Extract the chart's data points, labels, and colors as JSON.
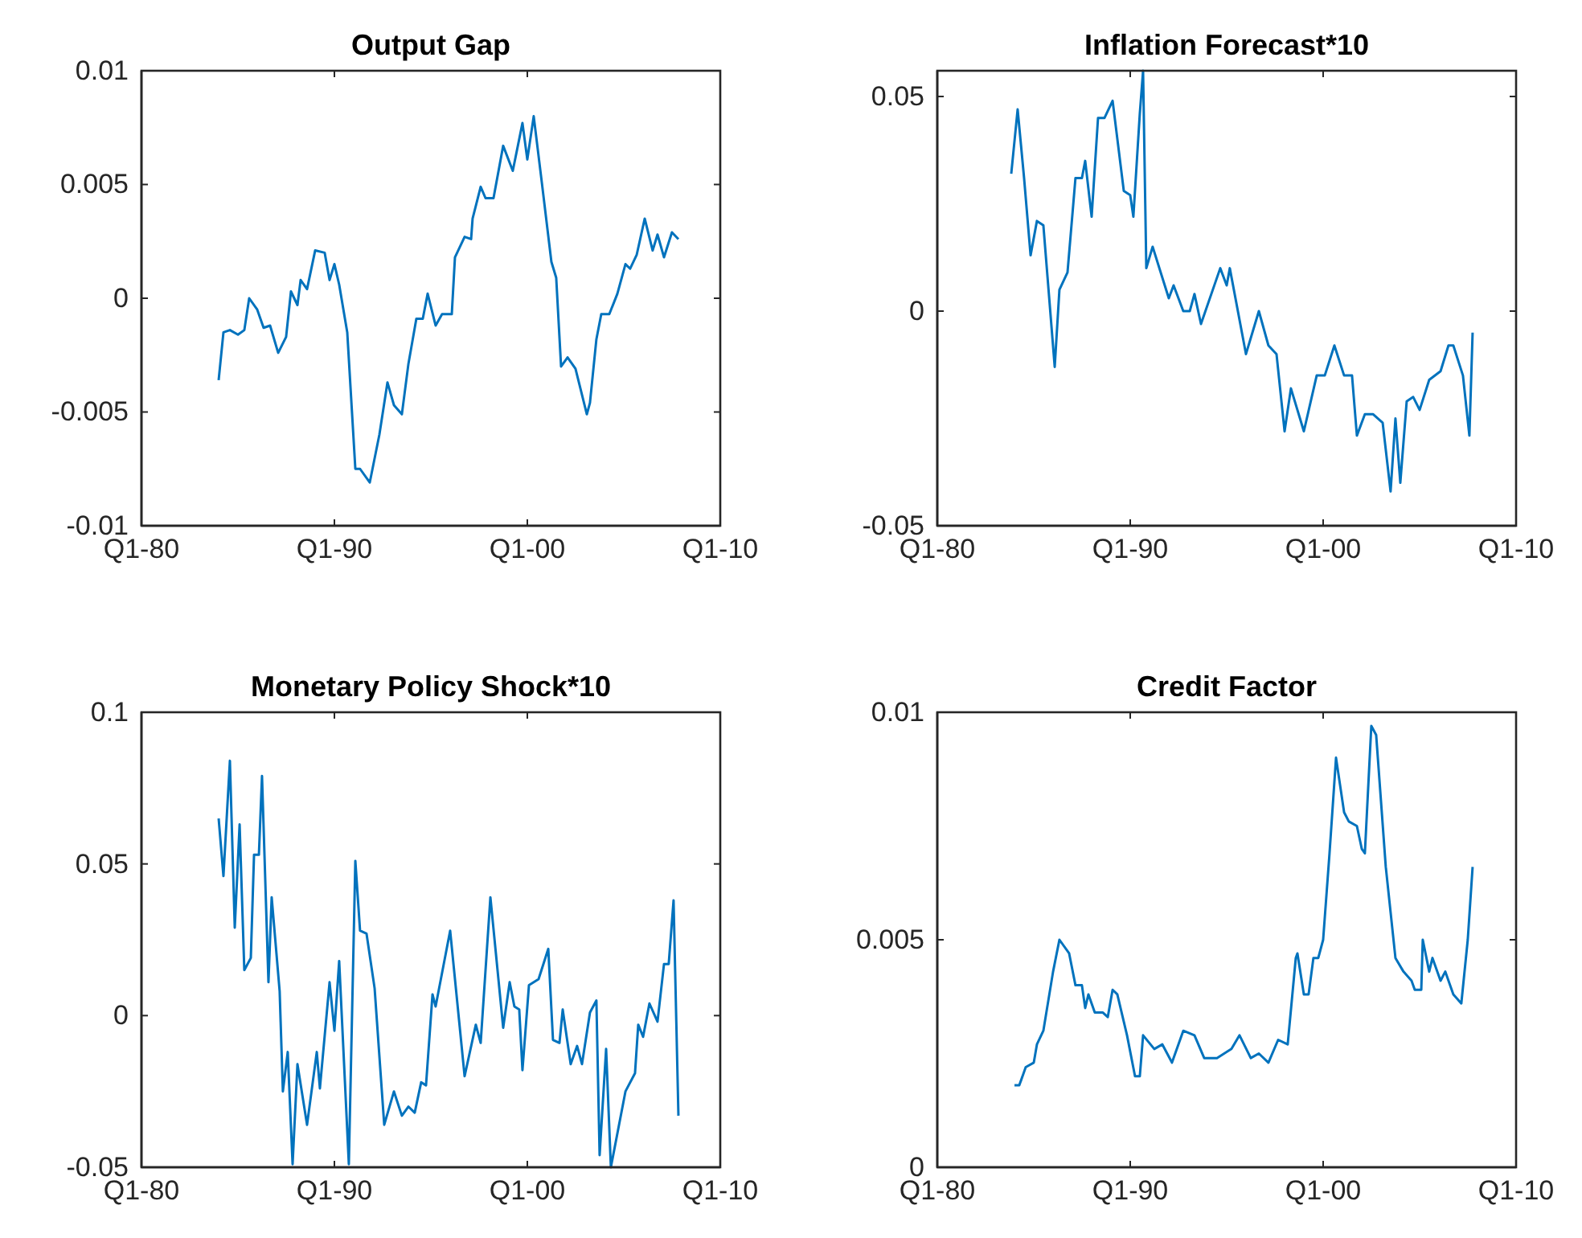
{
  "chart_data": [
    {
      "type": "line",
      "title": "Output Gap",
      "xlim": [
        "1980-01",
        "2010-01"
      ],
      "xticks": [
        {
          "value": "1980-01",
          "label": "Q1-80"
        },
        {
          "value": "1990-01",
          "label": "Q1-90"
        },
        {
          "value": "2000-01",
          "label": "Q1-00"
        },
        {
          "value": "2010-01",
          "label": "Q1-10"
        }
      ],
      "ylim": [
        -0.01,
        0.01
      ],
      "yticks": [
        -0.01,
        -0.005,
        0,
        0.005,
        0.01
      ],
      "x": [
        "1984-01",
        "1984-04",
        "1984-08",
        "1985-01",
        "1985-05",
        "1985-08",
        "1986-01",
        "1986-05",
        "1986-09",
        "1987-02",
        "1987-07",
        "1987-10",
        "1988-02",
        "1988-04",
        "1988-08",
        "1989-01",
        "1989-07",
        "1989-10",
        "1990-01",
        "1990-04",
        "1990-09",
        "1991-02",
        "1991-05",
        "1991-11",
        "1992-05",
        "1992-10",
        "1993-02",
        "1993-07",
        "1993-11",
        "1994-04",
        "1994-08",
        "1994-11",
        "1995-04",
        "1995-08",
        "1996-02",
        "1996-04",
        "1996-10",
        "1997-02",
        "1997-03",
        "1997-08",
        "1997-11",
        "1998-04",
        "1998-10",
        "1999-04",
        "1999-10",
        "2000-01",
        "2000-05",
        "2000-10",
        "2001-04",
        "2001-07",
        "2001-10",
        "2002-02",
        "2002-07",
        "2003-02",
        "2003-04",
        "2003-08",
        "2003-11",
        "2004-04",
        "2004-09",
        "2005-02",
        "2005-05",
        "2005-09",
        "2006-02",
        "2006-07",
        "2006-10",
        "2007-02",
        "2007-07",
        "2007-11"
      ],
      "series": [
        {
          "color": "#0072bd",
          "values": [
            -0.0036,
            -0.0015,
            -0.0014,
            -0.0016,
            -0.0014,
            0.0,
            -0.0005,
            -0.0013,
            -0.0012,
            -0.0024,
            -0.0017,
            0.0003,
            -0.0003,
            0.0008,
            0.0004,
            0.0021,
            0.002,
            0.0008,
            0.0015,
            0.0006,
            -0.0015,
            -0.0075,
            -0.0075,
            -0.0081,
            -0.006,
            -0.0037,
            -0.0047,
            -0.0051,
            -0.0029,
            -0.0009,
            -0.0009,
            0.0002,
            -0.0012,
            -0.0007,
            -0.0007,
            0.0018,
            0.0027,
            0.0026,
            0.0035,
            0.0049,
            0.0044,
            0.0044,
            0.0067,
            0.0056,
            0.0077,
            0.0061,
            0.008,
            0.0051,
            0.0016,
            0.0009,
            -0.003,
            -0.0026,
            -0.0031,
            -0.0051,
            -0.0046,
            -0.0018,
            -0.0007,
            -0.0007,
            0.0002,
            0.0015,
            0.0013,
            0.0019,
            0.0035,
            0.0021,
            0.0028,
            0.0018,
            0.0029,
            0.0026
          ]
        }
      ]
    },
    {
      "type": "line",
      "title": "Inflation Forecast*10",
      "xlim": [
        "1980-01",
        "2010-01"
      ],
      "xticks": [
        {
          "value": "1980-01",
          "label": "Q1-80"
        },
        {
          "value": "1990-01",
          "label": "Q1-90"
        },
        {
          "value": "2000-01",
          "label": "Q1-00"
        },
        {
          "value": "2010-01",
          "label": "Q1-10"
        }
      ],
      "ylim": [
        -0.05,
        0.056
      ],
      "yticks": [
        -0.05,
        0,
        0.05
      ],
      "x": [
        "1983-11",
        "1984-03",
        "1984-07",
        "1984-11",
        "1985-03",
        "1985-07",
        "1986-02",
        "1986-05",
        "1986-10",
        "1987-03",
        "1987-07",
        "1987-09",
        "1988-01",
        "1988-05",
        "1988-09",
        "1989-02",
        "1989-09",
        "1990-01",
        "1990-03",
        "1990-07",
        "1990-09",
        "1990-11",
        "1991-03",
        "1991-08",
        "1992-01",
        "1992-04",
        "1992-10",
        "1993-02",
        "1993-05",
        "1993-09",
        "1994-09",
        "1995-01",
        "1995-03",
        "1996-01",
        "1996-09",
        "1997-03",
        "1997-08",
        "1998-01",
        "1998-05",
        "1999-01",
        "1999-09",
        "2000-02",
        "2000-08",
        "2001-02",
        "2001-07",
        "2001-10",
        "2002-03",
        "2002-08",
        "2003-02",
        "2003-07",
        "2003-10",
        "2004-01",
        "2004-05",
        "2004-09",
        "2005-01",
        "2005-07",
        "2006-02",
        "2006-07",
        "2006-10",
        "2007-04",
        "2007-08",
        "2007-10"
      ],
      "series": [
        {
          "color": "#0072bd",
          "values": [
            0.032,
            0.047,
            0.031,
            0.013,
            0.021,
            0.02,
            -0.013,
            0.005,
            0.009,
            0.031,
            0.031,
            0.035,
            0.022,
            0.045,
            0.045,
            0.049,
            0.028,
            0.027,
            0.022,
            0.046,
            0.056,
            0.01,
            0.015,
            0.009,
            0.003,
            0.006,
            0.0,
            0.0,
            0.004,
            -0.003,
            0.01,
            0.006,
            0.01,
            -0.01,
            0.0,
            -0.008,
            -0.01,
            -0.028,
            -0.018,
            -0.028,
            -0.015,
            -0.015,
            -0.008,
            -0.015,
            -0.015,
            -0.029,
            -0.024,
            -0.024,
            -0.026,
            -0.042,
            -0.025,
            -0.04,
            -0.021,
            -0.02,
            -0.023,
            -0.016,
            -0.014,
            -0.008,
            -0.008,
            -0.015,
            -0.029,
            -0.005
          ]
        }
      ]
    },
    {
      "type": "line",
      "title": "Monetary Policy Shock*10",
      "xlim": [
        "1980-01",
        "2010-01"
      ],
      "xticks": [
        {
          "value": "1980-01",
          "label": "Q1-80"
        },
        {
          "value": "1990-01",
          "label": "Q1-90"
        },
        {
          "value": "2000-01",
          "label": "Q1-00"
        },
        {
          "value": "2010-01",
          "label": "Q1-10"
        }
      ],
      "ylim": [
        -0.05,
        0.1
      ],
      "yticks": [
        -0.05,
        0,
        0.05,
        0.1
      ],
      "x": [
        "1984-01",
        "1984-04",
        "1984-08",
        "1984-11",
        "1985-02",
        "1985-05",
        "1985-09",
        "1985-11",
        "1986-02",
        "1986-04",
        "1986-08",
        "1986-10",
        "1987-03",
        "1987-05",
        "1987-08",
        "1987-11",
        "1988-02",
        "1988-08",
        "1989-02",
        "1989-04",
        "1989-10",
        "1990-01",
        "1990-04",
        "1990-10",
        "1991-02",
        "1991-05",
        "1991-09",
        "1992-02",
        "1992-08",
        "1993-02",
        "1993-07",
        "1993-11",
        "1994-03",
        "1994-07",
        "1994-10",
        "1995-02",
        "1995-04",
        "1996-01",
        "1996-10",
        "1997-05",
        "1997-08",
        "1998-02",
        "1998-10",
        "1999-02",
        "1999-05",
        "1999-08",
        "1999-10",
        "2000-02",
        "2000-08",
        "2001-02",
        "2001-05",
        "2001-09",
        "2001-11",
        "2002-04",
        "2002-08",
        "2002-11",
        "2003-04",
        "2003-08",
        "2003-10",
        "2004-02",
        "2004-05",
        "2005-02",
        "2005-08",
        "2005-10",
        "2006-01",
        "2006-05",
        "2006-10",
        "2007-02",
        "2007-05",
        "2007-08",
        "2007-11"
      ],
      "series": [
        {
          "color": "#0072bd",
          "values": [
            0.065,
            0.046,
            0.084,
            0.029,
            0.063,
            0.015,
            0.019,
            0.053,
            0.053,
            0.079,
            0.011,
            0.039,
            0.008,
            -0.025,
            -0.012,
            -0.049,
            -0.016,
            -0.036,
            -0.012,
            -0.024,
            0.011,
            -0.005,
            0.018,
            -0.049,
            0.051,
            0.028,
            0.027,
            0.009,
            -0.036,
            -0.025,
            -0.033,
            -0.03,
            -0.032,
            -0.022,
            -0.023,
            0.007,
            0.003,
            0.028,
            -0.02,
            -0.003,
            -0.009,
            0.039,
            -0.004,
            0.011,
            0.003,
            0.002,
            -0.018,
            0.01,
            0.012,
            0.022,
            -0.008,
            -0.009,
            0.002,
            -0.016,
            -0.01,
            -0.016,
            0.001,
            0.005,
            -0.046,
            -0.011,
            -0.05,
            -0.025,
            -0.019,
            -0.003,
            -0.007,
            0.004,
            -0.002,
            0.017,
            0.017,
            0.038,
            -0.033
          ]
        }
      ]
    },
    {
      "type": "line",
      "title": "Credit Factor",
      "xlim": [
        "1980-01",
        "2010-01"
      ],
      "xticks": [
        {
          "value": "1980-01",
          "label": "Q1-80"
        },
        {
          "value": "1990-01",
          "label": "Q1-90"
        },
        {
          "value": "2000-01",
          "label": "Q1-00"
        },
        {
          "value": "2010-01",
          "label": "Q1-10"
        }
      ],
      "ylim": [
        0,
        0.01
      ],
      "yticks": [
        0,
        0.005,
        0.01
      ],
      "x": [
        "1984-01",
        "1984-04",
        "1984-08",
        "1985-01",
        "1985-03",
        "1985-07",
        "1986-01",
        "1986-05",
        "1986-11",
        "1987-03",
        "1987-07",
        "1987-09",
        "1987-11",
        "1988-03",
        "1988-08",
        "1988-11",
        "1989-02",
        "1989-05",
        "1989-11",
        "1990-04",
        "1990-07",
        "1990-09",
        "1991-04",
        "1991-09",
        "1992-03",
        "1992-10",
        "1993-05",
        "1993-11",
        "1994-07",
        "1995-04",
        "1995-09",
        "1996-04",
        "1996-09",
        "1997-03",
        "1997-09",
        "1998-03",
        "1998-08",
        "1998-09",
        "1999-01",
        "1999-04",
        "1999-07",
        "1999-10",
        "2000-01",
        "2000-05",
        "2000-09",
        "2001-02",
        "2001-05",
        "2001-10",
        "2002-01",
        "2002-03",
        "2002-07",
        "2002-10",
        "2003-04",
        "2003-10",
        "2004-03",
        "2004-08",
        "2004-10",
        "2005-02",
        "2005-03",
        "2005-07",
        "2005-09",
        "2006-02",
        "2006-05",
        "2006-10",
        "2007-03",
        "2007-07",
        "2007-10"
      ],
      "series": [
        {
          "color": "#0072bd",
          "values": [
            0.0018,
            0.0018,
            0.0022,
            0.0023,
            0.0027,
            0.003,
            0.0043,
            0.005,
            0.0047,
            0.004,
            0.004,
            0.0035,
            0.0038,
            0.0034,
            0.0034,
            0.0033,
            0.0039,
            0.0038,
            0.0029,
            0.002,
            0.002,
            0.0029,
            0.0026,
            0.0027,
            0.0023,
            0.003,
            0.0029,
            0.0024,
            0.0024,
            0.0026,
            0.0029,
            0.0024,
            0.0025,
            0.0023,
            0.0028,
            0.0027,
            0.0046,
            0.0047,
            0.0038,
            0.0038,
            0.0046,
            0.0046,
            0.005,
            0.0069,
            0.009,
            0.0078,
            0.0076,
            0.0075,
            0.007,
            0.0069,
            0.0097,
            0.0095,
            0.0066,
            0.0046,
            0.0043,
            0.0041,
            0.0039,
            0.0039,
            0.005,
            0.0043,
            0.0046,
            0.0041,
            0.0043,
            0.0038,
            0.0036,
            0.005,
            0.0066
          ]
        }
      ]
    }
  ]
}
